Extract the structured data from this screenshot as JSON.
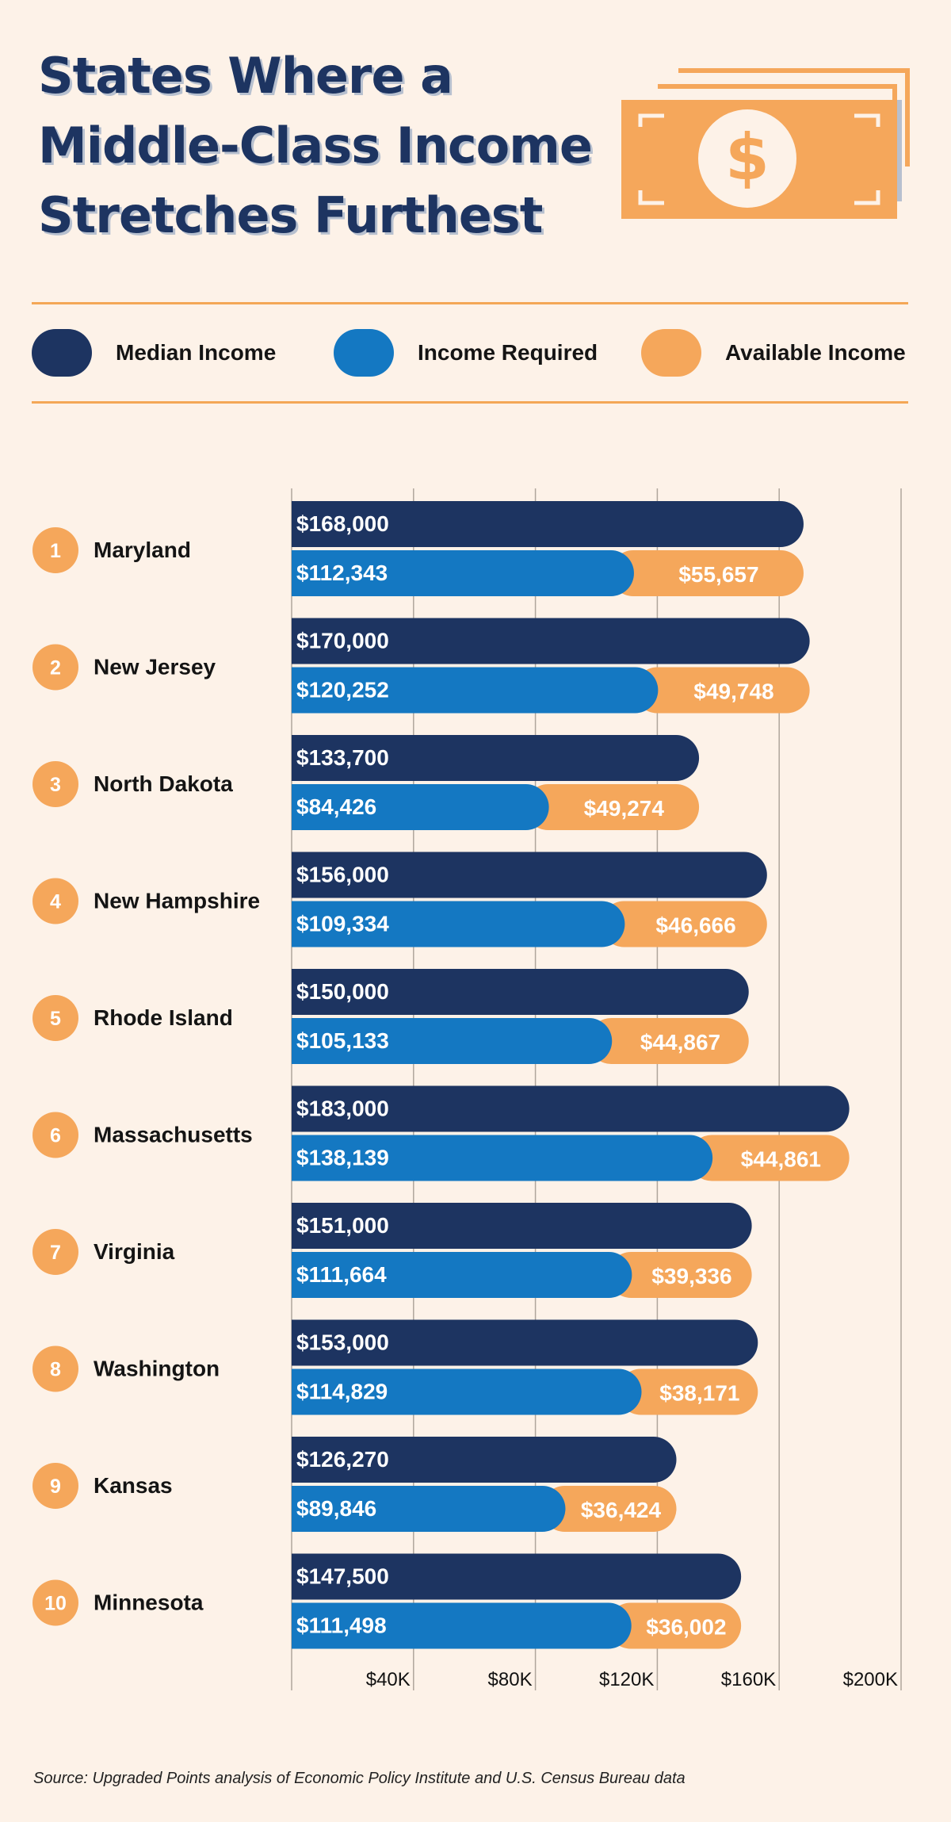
{
  "title": "States Where a Middle-Class Income Stretches Furthest",
  "icon": "money-bills-icon",
  "colors": {
    "median": "#1d3461",
    "required": "#1478c2",
    "available": "#f5a75b",
    "background": "#fdf2e8",
    "rank_badge": "#f5a75b",
    "gridline": "#b0a69c"
  },
  "legend": [
    {
      "key": "median",
      "label": "Median Income"
    },
    {
      "key": "required",
      "label": "Income Required"
    },
    {
      "key": "available",
      "label": "Available Income"
    }
  ],
  "chart_data": {
    "type": "bar",
    "orientation": "horizontal",
    "categories": [
      "Maryland",
      "New Jersey",
      "North Dakota",
      "New Hampshire",
      "Rhode Island",
      "Massachusetts",
      "Virginia",
      "Washington",
      "Kansas",
      "Minnesota"
    ],
    "ranks": [
      "1",
      "2",
      "3",
      "4",
      "5",
      "6",
      "7",
      "8",
      "9",
      "10"
    ],
    "series": [
      {
        "name": "Median Income",
        "key": "median",
        "values": [
          168000,
          170000,
          133700,
          156000,
          150000,
          183000,
          151000,
          153000,
          126270,
          147500
        ],
        "labels": [
          "$168,000",
          "$170,000",
          "$133,700",
          "$156,000",
          "$150,000",
          "$183,000",
          "$151,000",
          "$153,000",
          "$126,270",
          "$147,500"
        ]
      },
      {
        "name": "Income Required",
        "key": "required",
        "values": [
          112343,
          120252,
          84426,
          109334,
          105133,
          138139,
          111664,
          114829,
          89846,
          111498
        ],
        "labels": [
          "$112,343",
          "$120,252",
          "$84,426",
          "$109,334",
          "$105,133",
          "$138,139",
          "$111,664",
          "$114,829",
          "$89,846",
          "$111,498"
        ]
      },
      {
        "name": "Available Income",
        "key": "available",
        "stacked_on": "Income Required",
        "values": [
          55657,
          49748,
          49274,
          46666,
          44867,
          44861,
          39336,
          38171,
          36424,
          36002
        ],
        "labels": [
          "$55,657",
          "$49,748",
          "$49,274",
          "$46,666",
          "$44,867",
          "$44,861",
          "$39,336",
          "$38,171",
          "$36,424",
          "$36,002"
        ]
      }
    ],
    "xlim": [
      0,
      200000
    ],
    "xticks": [
      40000,
      80000,
      120000,
      160000,
      200000
    ],
    "xtick_labels": [
      "$40K",
      "$80K",
      "$120K",
      "$160K",
      "$200K"
    ],
    "grid": true,
    "legend_position": "top"
  },
  "source": "Source: Upgraded Points analysis of Economic Policy Institute and U.S. Census Bureau data"
}
